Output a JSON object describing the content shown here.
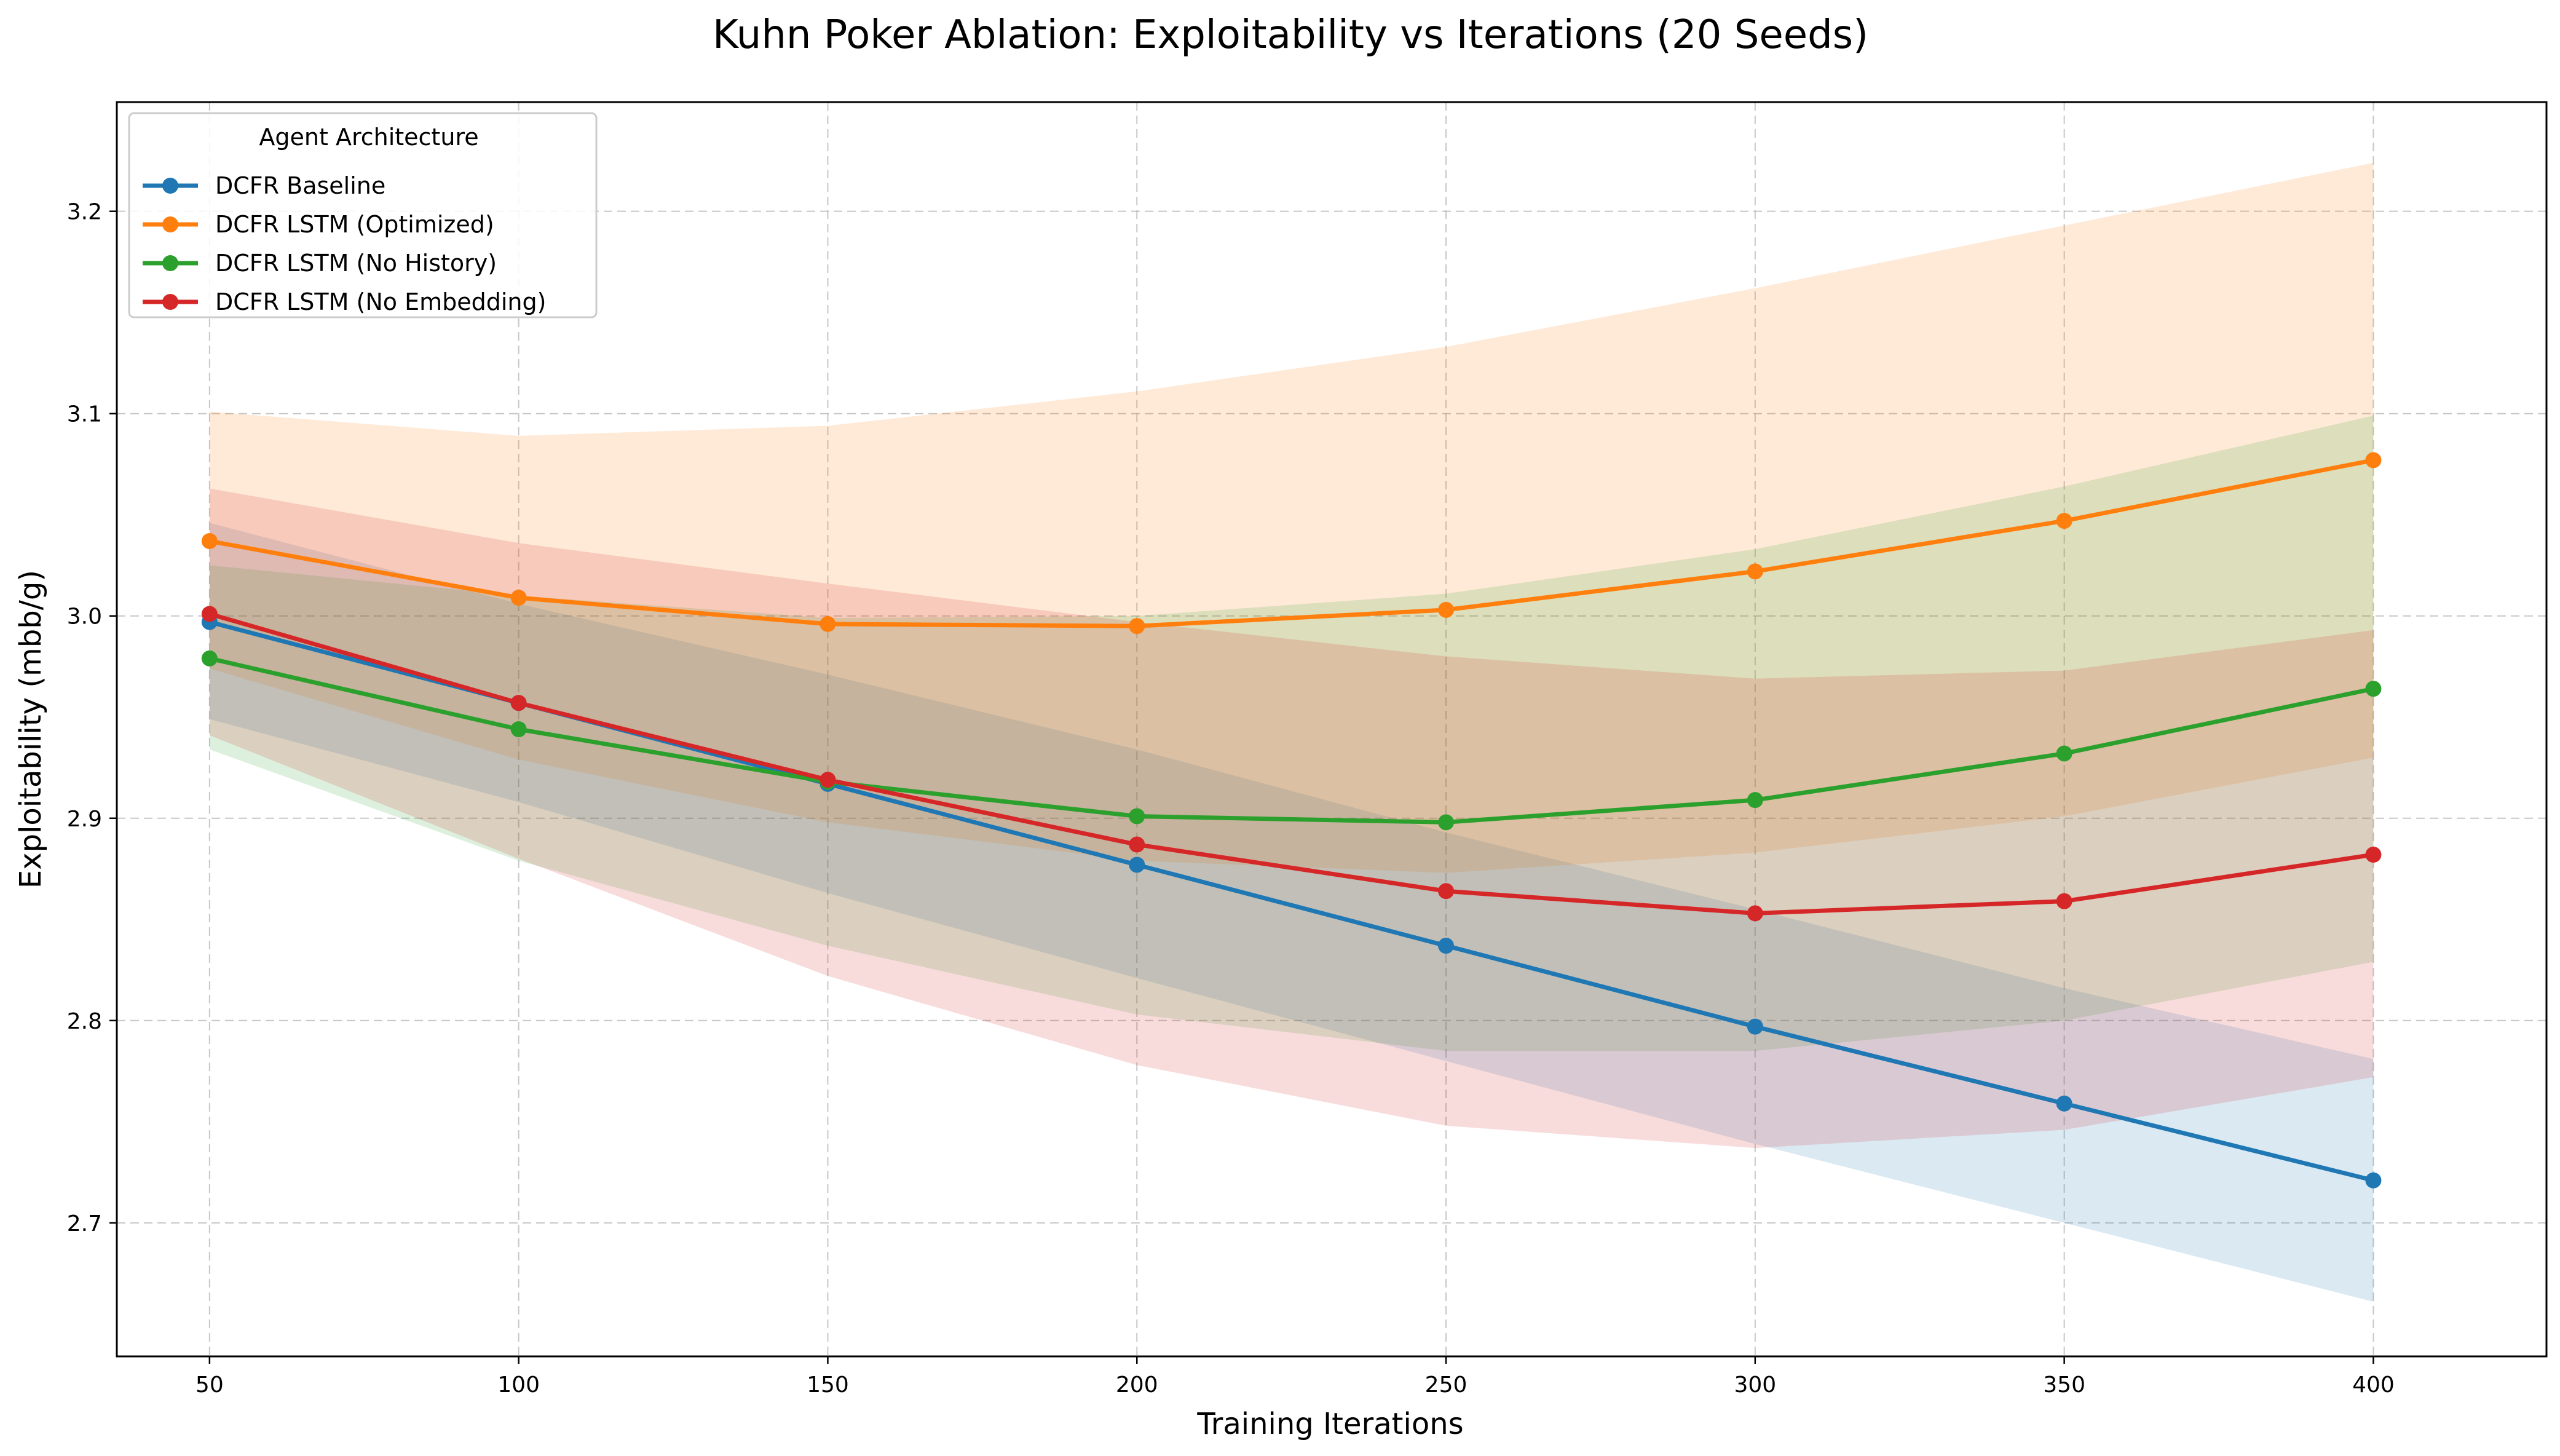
{
  "chart_data": {
    "type": "line",
    "title": "Kuhn Poker Ablation: Exploitability vs Iterations (20 Seeds)",
    "xlabel": "Training Iterations",
    "ylabel": "Exploitability (mbb/g)",
    "x": [
      50,
      100,
      150,
      200,
      250,
      300,
      350,
      400
    ],
    "xticks": [
      "50",
      "100",
      "150",
      "200",
      "250",
      "300",
      "350",
      "400"
    ],
    "yticks": [
      "2.7",
      "2.8",
      "2.9",
      "3.0",
      "3.1",
      "3.2"
    ],
    "xlim": [
      35,
      428
    ],
    "ylim": [
      2.634,
      3.254
    ],
    "grid": true,
    "legend_title": "Agent Architecture",
    "legend_position": "upper left",
    "series": [
      {
        "name": "DCFR Baseline",
        "color": "#1f77b4",
        "values": [
          2.997,
          2.957,
          2.917,
          2.877,
          2.837,
          2.797,
          2.759,
          2.721
        ],
        "band_upper": [
          3.046,
          3.006,
          2.971,
          2.934,
          2.893,
          2.855,
          2.816,
          2.781
        ],
        "band_lower": [
          2.949,
          2.908,
          2.863,
          2.821,
          2.78,
          2.739,
          2.7,
          2.661
        ]
      },
      {
        "name": "DCFR LSTM (Optimized)",
        "color": "#ff7f0e",
        "values": [
          3.037,
          3.009,
          2.996,
          2.995,
          3.003,
          3.022,
          3.047,
          3.077
        ],
        "band_upper": [
          3.101,
          3.089,
          3.094,
          3.111,
          3.133,
          3.162,
          3.193,
          3.224
        ],
        "band_lower": [
          2.974,
          2.929,
          2.898,
          2.879,
          2.873,
          2.883,
          2.901,
          2.93
        ]
      },
      {
        "name": "DCFR LSTM (No History)",
        "color": "#2ca02c",
        "values": [
          2.979,
          2.944,
          2.918,
          2.901,
          2.898,
          2.909,
          2.932,
          2.964
        ],
        "band_upper": [
          3.025,
          3.01,
          2.999,
          3.0,
          3.011,
          3.033,
          3.064,
          3.099
        ],
        "band_lower": [
          2.934,
          2.879,
          2.837,
          2.803,
          2.785,
          2.785,
          2.8,
          2.829
        ]
      },
      {
        "name": "DCFR LSTM (No Embedding)",
        "color": "#d62728",
        "values": [
          3.001,
          2.957,
          2.919,
          2.887,
          2.864,
          2.853,
          2.859,
          2.882
        ],
        "band_upper": [
          3.063,
          3.036,
          3.016,
          2.997,
          2.98,
          2.969,
          2.973,
          2.993
        ],
        "band_lower": [
          2.941,
          2.88,
          2.822,
          2.778,
          2.748,
          2.737,
          2.746,
          2.772
        ]
      }
    ]
  }
}
